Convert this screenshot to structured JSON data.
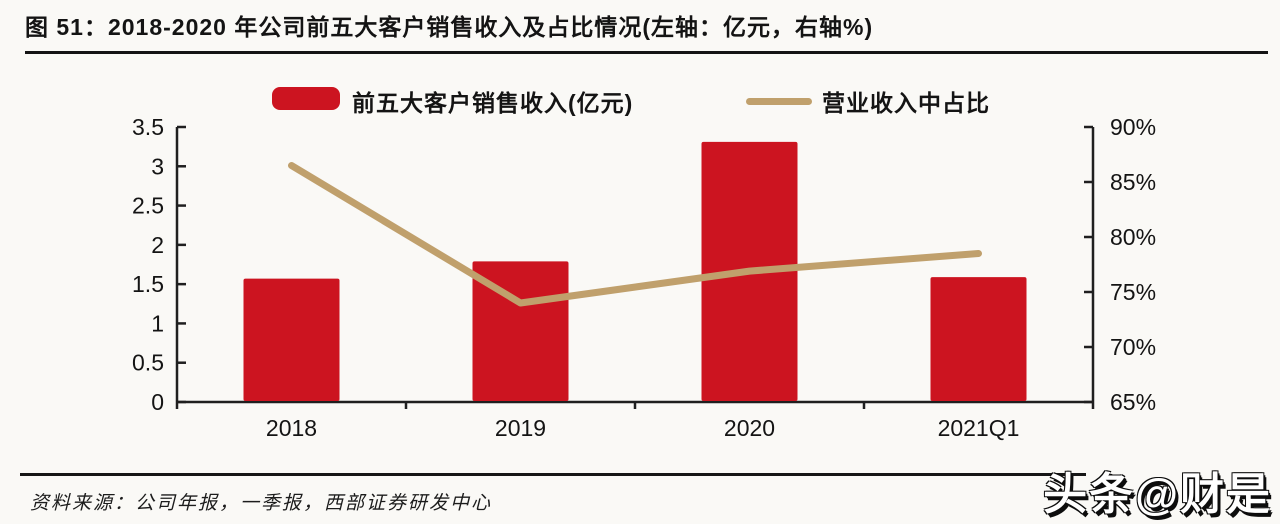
{
  "page": {
    "background": "#faf9f6"
  },
  "header": {
    "title": "图 51：2018-2020 年公司前五大客户销售收入及占比情况(左轴：亿元，右轴%)"
  },
  "chart_data": {
    "type": "bar+line",
    "categories": [
      "2018",
      "2019",
      "2020",
      "2021Q1"
    ],
    "series": [
      {
        "name": "前五大客户销售收入(亿元)",
        "type": "bar",
        "axis": "left",
        "color": "#cc1420",
        "values": [
          1.57,
          1.79,
          3.31,
          1.59
        ]
      },
      {
        "name": "营业收入中占比",
        "type": "line",
        "axis": "right",
        "color": "#c0a06c",
        "values": [
          86.5,
          74.0,
          76.9,
          78.5
        ]
      }
    ],
    "left_axis": {
      "min": 0,
      "max": 3.5,
      "step": 0.5,
      "ticks": [
        "0",
        "0.5",
        "1",
        "1.5",
        "2",
        "2.5",
        "3",
        "3.5"
      ]
    },
    "right_axis": {
      "min": 65,
      "max": 90,
      "step": 5,
      "ticks": [
        "65%",
        "70%",
        "75%",
        "80%",
        "85%",
        "90%"
      ]
    },
    "grid": false,
    "legend_position": "top"
  },
  "footer": {
    "source": "资料来源：公司年报，一季报，西部证券研发中心"
  },
  "watermark": {
    "text": "头条@财是"
  },
  "colors": {
    "bar": "#cc1420",
    "line": "#c0a06c",
    "axis": "#1f1f1f"
  }
}
